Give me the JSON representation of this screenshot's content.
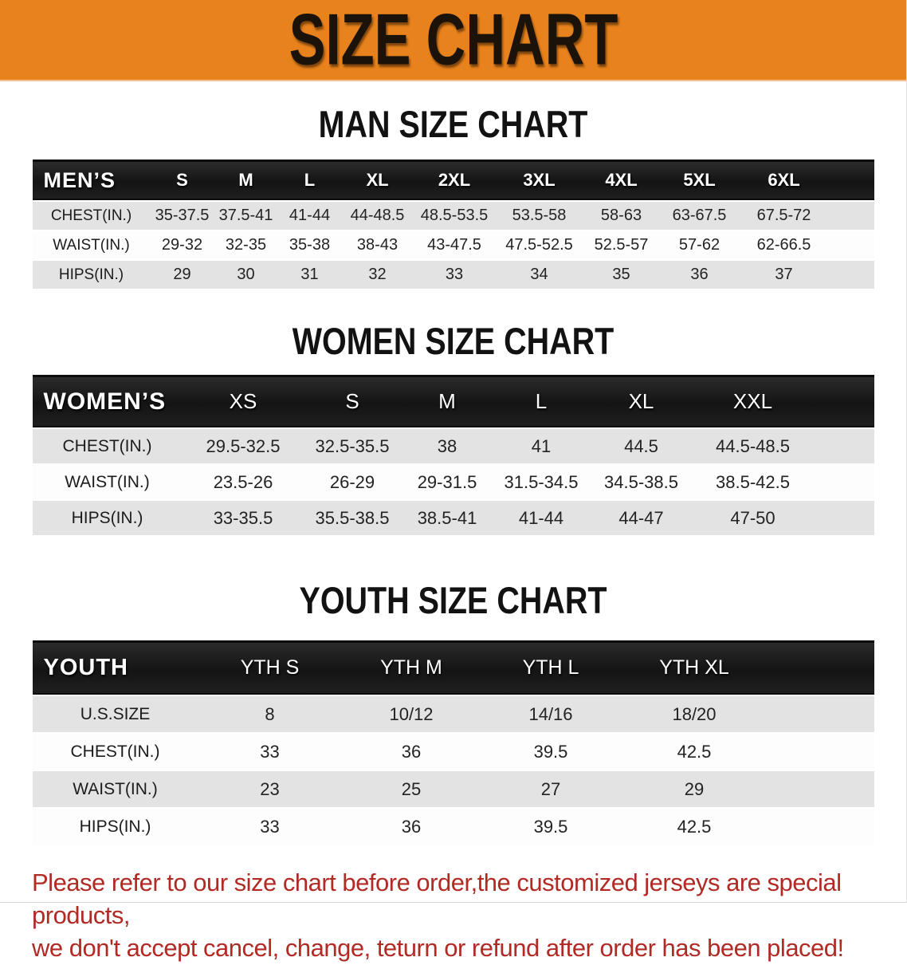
{
  "banner": {
    "title": "SIZE CHART",
    "bg_color": "#e8821c"
  },
  "sections": [
    {
      "id": "men",
      "title": "MAN SIZE CHART",
      "table": {
        "header": [
          "MEN’S",
          "S",
          "M",
          "L",
          "XL",
          "2XL",
          "3XL",
          "4XL",
          "5XL",
          "6XL"
        ],
        "rows": [
          [
            "CHEST(IN.)",
            "35-37.5",
            "37.5-41",
            "41-44",
            "44-48.5",
            "48.5-53.5",
            "53.5-58",
            "58-63",
            "63-67.5",
            "67.5-72"
          ],
          [
            "WAIST(IN.)",
            "29-32",
            "32-35",
            "35-38",
            "38-43",
            "43-47.5",
            "47.5-52.5",
            "52.5-57",
            "57-62",
            "62-66.5"
          ],
          [
            "HIPS(IN.)",
            "29",
            "30",
            "31",
            "32",
            "33",
            "34",
            "35",
            "36",
            "37"
          ]
        ]
      }
    },
    {
      "id": "women",
      "title": "WOMEN SIZE CHART",
      "table": {
        "header": [
          "WOMEN’S",
          "XS",
          "S",
          "M",
          "L",
          "XL",
          "XXL"
        ],
        "rows": [
          [
            "CHEST(IN.)",
            "29.5-32.5",
            "32.5-35.5",
            "38",
            "41",
            "44.5",
            "44.5-48.5"
          ],
          [
            "WAIST(IN.)",
            "23.5-26",
            "26-29",
            "29-31.5",
            "31.5-34.5",
            "34.5-38.5",
            "38.5-42.5"
          ],
          [
            "HIPS(IN.)",
            "33-35.5",
            "35.5-38.5",
            "38.5-41",
            "41-44",
            "44-47",
            "47-50"
          ]
        ]
      }
    },
    {
      "id": "youth",
      "title": "YOUTH SIZE CHART",
      "table": {
        "header": [
          "YOUTH",
          "YTH S",
          "YTH M",
          "YTH L",
          "YTH XL"
        ],
        "rows": [
          [
            "U.S.SIZE",
            "8",
            "10/12",
            "14/16",
            "18/20"
          ],
          [
            "CHEST(IN.)",
            "33",
            "36",
            "39.5",
            "42.5"
          ],
          [
            "WAIST(IN.)",
            "23",
            "25",
            "27",
            "29"
          ],
          [
            "HIPS(IN.)",
            "33",
            "36",
            "39.5",
            "42.5"
          ]
        ]
      }
    }
  ],
  "disclaimer": {
    "line1": "Please refer to our size chart before order,the customized jerseys are special products,",
    "line2": "we don't accept cancel, change, teturn or refund after order has been placed!",
    "text_color": "#b12a24"
  }
}
